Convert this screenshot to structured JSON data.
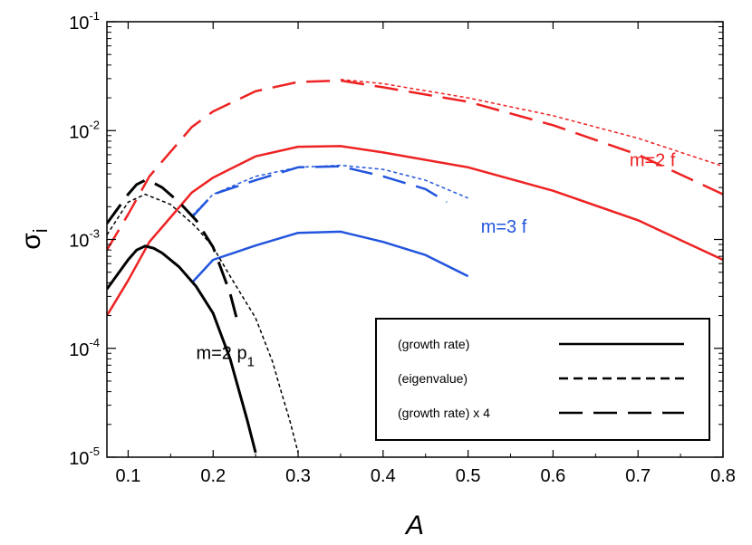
{
  "chart_data": {
    "type": "line",
    "title": "",
    "xlabel": "A",
    "ylabel": "σ",
    "ylabel_sub": "i",
    "xlim": [
      0.075,
      0.8
    ],
    "ylim": [
      1e-05,
      0.1
    ],
    "yscale": "log",
    "xticks": [
      0.1,
      0.2,
      0.3,
      0.4,
      0.5,
      0.6,
      0.7,
      0.8
    ],
    "xtick_labels": [
      "0.1",
      "0.2",
      "0.3",
      "0.4",
      "0.5",
      "0.6",
      "0.7",
      "0.8"
    ],
    "yticks": [
      {
        "value": 1e-05,
        "base": "10",
        "exp": "-5"
      },
      {
        "value": 0.0001,
        "base": "10",
        "exp": "-4"
      },
      {
        "value": 0.001,
        "base": "10",
        "exp": "-3"
      },
      {
        "value": 0.01,
        "base": "10",
        "exp": "-2"
      },
      {
        "value": 0.1,
        "base": "10",
        "exp": "-1"
      }
    ],
    "colors": {
      "m2f": "#ee2222",
      "m3f": "#2255dd",
      "m2p1": "#000000"
    },
    "series": [
      {
        "name": "m=2 f growth rate",
        "color": "#ee2222",
        "style": "solid",
        "width": 2.5,
        "x": [
          0.075,
          0.1,
          0.125,
          0.15,
          0.175,
          0.2,
          0.25,
          0.3,
          0.35,
          0.4,
          0.5,
          0.6,
          0.7,
          0.8
        ],
        "y": [
          0.0002,
          0.00042,
          0.00095,
          0.0016,
          0.0027,
          0.0037,
          0.0058,
          0.0071,
          0.0072,
          0.0063,
          0.0046,
          0.0028,
          0.0015,
          0.00065
        ]
      },
      {
        "name": "m=2 f eigenvalue",
        "color": "#ee2222",
        "style": "dotted",
        "width": 1.5,
        "x": [
          0.35,
          0.4,
          0.5,
          0.6,
          0.7,
          0.8
        ],
        "y": [
          0.0295,
          0.027,
          0.02,
          0.0137,
          0.0085,
          0.0047
        ]
      },
      {
        "name": "m=2 f growth rate x 4",
        "color": "#ee2222",
        "style": "longdash",
        "width": 2.5,
        "x": [
          0.075,
          0.1,
          0.125,
          0.15,
          0.175,
          0.2,
          0.25,
          0.3,
          0.35,
          0.4,
          0.5,
          0.6,
          0.7,
          0.8
        ],
        "y": [
          0.0008,
          0.0017,
          0.0038,
          0.0064,
          0.0108,
          0.015,
          0.023,
          0.028,
          0.0288,
          0.025,
          0.0184,
          0.0112,
          0.006,
          0.0026
        ]
      },
      {
        "name": "m=3 f growth rate",
        "color": "#2255dd",
        "style": "solid",
        "width": 2.5,
        "x": [
          0.175,
          0.2,
          0.25,
          0.3,
          0.35,
          0.4,
          0.45,
          0.5
        ],
        "y": [
          0.0004,
          0.00065,
          0.00088,
          0.00115,
          0.00118,
          0.00095,
          0.00072,
          0.00046
        ]
      },
      {
        "name": "m=3 f eigenvalue",
        "color": "#2255dd",
        "style": "dotted",
        "width": 1.5,
        "x": [
          0.175,
          0.2,
          0.25,
          0.3,
          0.35,
          0.4,
          0.45,
          0.5
        ],
        "y": [
          0.00165,
          0.0026,
          0.0038,
          0.0046,
          0.0048,
          0.0044,
          0.0035,
          0.0024
        ]
      },
      {
        "name": "m=3 f growth rate x 4",
        "color": "#2255dd",
        "style": "longdash",
        "width": 2.5,
        "x": [
          0.175,
          0.2,
          0.25,
          0.3,
          0.35,
          0.4,
          0.45,
          0.475
        ],
        "y": [
          0.0016,
          0.0026,
          0.0035,
          0.0046,
          0.0047,
          0.0038,
          0.0029,
          0.0022
        ]
      },
      {
        "name": "m=2 p1 growth rate",
        "color": "#000000",
        "style": "solid",
        "width": 3,
        "x": [
          0.075,
          0.1,
          0.11,
          0.12,
          0.13,
          0.14,
          0.16,
          0.18,
          0.2,
          0.22,
          0.24,
          0.25
        ],
        "y": [
          0.00035,
          0.00065,
          0.0008,
          0.00087,
          0.00083,
          0.00075,
          0.00056,
          0.00037,
          0.00021,
          8e-05,
          2.2e-05,
          1.1e-05
        ]
      },
      {
        "name": "m=2 p1 eigenvalue",
        "color": "#000000",
        "style": "dotted",
        "width": 1.5,
        "x": [
          0.075,
          0.1,
          0.12,
          0.15,
          0.18,
          0.2,
          0.22,
          0.25,
          0.27,
          0.28,
          0.29,
          0.3
        ],
        "y": [
          0.0011,
          0.0022,
          0.0026,
          0.0021,
          0.0013,
          0.00085,
          0.00046,
          0.00019,
          7.5e-05,
          4e-05,
          2.2e-05,
          1.1e-05
        ]
      },
      {
        "name": "m=2 p1 growth rate x 4",
        "color": "#000000",
        "style": "longdash",
        "width": 3,
        "x": [
          0.075,
          0.1,
          0.11,
          0.12,
          0.13,
          0.14,
          0.16,
          0.18,
          0.2,
          0.22,
          0.23
        ],
        "y": [
          0.0014,
          0.0026,
          0.0032,
          0.0035,
          0.0033,
          0.003,
          0.0022,
          0.0015,
          0.00085,
          0.00032,
          0.00016
        ]
      }
    ],
    "annotations": [
      {
        "text": "m=2 f",
        "color": "#ee2222",
        "x": 0.69,
        "y": 0.0047
      },
      {
        "text": "m=3 f",
        "color": "#2255dd",
        "x": 0.515,
        "y": 0.00115
      },
      {
        "text": "m=2 p",
        "sub": "1",
        "color": "#000000",
        "x": 0.18,
        "y": 8e-05
      }
    ],
    "legend": {
      "position": "lower-right",
      "entries": [
        {
          "label": "(growth rate)",
          "style": "solid"
        },
        {
          "label": "(eigenvalue)",
          "style": "dashed"
        },
        {
          "label": "(growth rate) x 4",
          "style": "longdash"
        }
      ]
    }
  }
}
